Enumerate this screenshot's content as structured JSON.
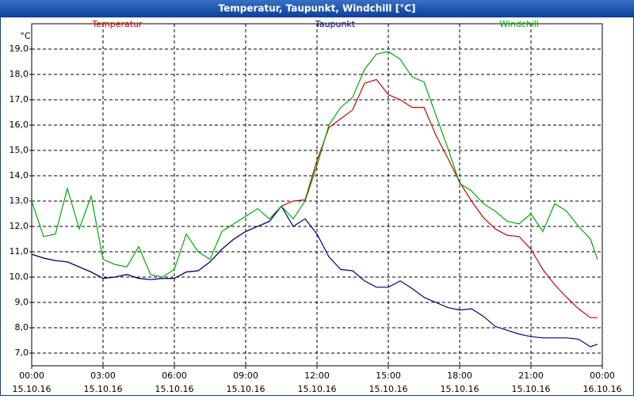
{
  "chart_data": {
    "type": "line",
    "title": "Temperatur, Taupunkt, Windchill [°C]",
    "y_unit": "°C",
    "x": [
      0,
      0.5,
      1,
      1.5,
      2,
      2.5,
      3,
      3.5,
      4,
      4.5,
      5,
      5.5,
      6,
      6.5,
      7,
      7.5,
      8,
      8.5,
      9,
      9.5,
      10,
      10.5,
      11,
      11.5,
      12,
      12.5,
      13,
      13.5,
      14,
      14.5,
      15,
      15.5,
      16,
      16.5,
      17,
      17.5,
      18,
      18.5,
      19,
      19.5,
      20,
      20.5,
      21,
      21.5,
      22,
      22.5,
      23,
      23.5,
      23.8
    ],
    "series": [
      {
        "name": "Temperatur",
        "color": "#cc0000",
        "values": [
          10.9,
          10.75,
          10.65,
          10.6,
          10.4,
          10.2,
          9.95,
          10.0,
          10.1,
          9.95,
          9.9,
          9.95,
          9.95,
          10.2,
          10.25,
          10.6,
          11.1,
          11.5,
          11.8,
          12.0,
          12.2,
          12.8,
          13.0,
          13.05,
          14.6,
          15.9,
          16.25,
          16.6,
          17.65,
          17.8,
          17.2,
          17.0,
          16.7,
          16.7,
          15.6,
          14.7,
          13.75,
          13.0,
          12.35,
          11.9,
          11.65,
          11.6,
          11.1,
          10.3,
          9.7,
          9.2,
          8.75,
          8.4,
          8.4
        ]
      },
      {
        "name": "Taupunkt",
        "color": "#00008b",
        "values": [
          10.9,
          10.75,
          10.65,
          10.6,
          10.4,
          10.2,
          9.95,
          10.0,
          10.1,
          9.95,
          9.9,
          9.95,
          9.95,
          10.2,
          10.25,
          10.6,
          11.1,
          11.5,
          11.8,
          12.0,
          12.2,
          12.8,
          12.0,
          12.3,
          11.7,
          10.8,
          10.3,
          10.25,
          9.85,
          9.6,
          9.6,
          9.85,
          9.55,
          9.2,
          9.0,
          8.8,
          8.7,
          8.75,
          8.45,
          8.05,
          7.9,
          7.75,
          7.65,
          7.6,
          7.6,
          7.6,
          7.55,
          7.25,
          7.35
        ]
      },
      {
        "name": "Windchill",
        "color": "#00aa00",
        "values": [
          13.0,
          11.6,
          11.7,
          13.5,
          11.9,
          13.2,
          10.7,
          10.5,
          10.4,
          11.2,
          10.1,
          10.0,
          10.3,
          11.7,
          11.0,
          10.7,
          11.8,
          12.1,
          12.4,
          12.7,
          12.3,
          12.8,
          12.3,
          13.0,
          14.4,
          16.0,
          16.7,
          17.1,
          18.2,
          18.8,
          18.9,
          18.6,
          17.9,
          17.7,
          16.4,
          15.1,
          13.7,
          13.4,
          12.9,
          12.6,
          12.2,
          12.1,
          12.5,
          11.8,
          12.9,
          12.6,
          12.0,
          11.5,
          10.7
        ]
      }
    ],
    "xlim": [
      0,
      24
    ],
    "xticks": [
      {
        "value": 0,
        "label": "00:00 15.10.16"
      },
      {
        "value": 3,
        "label": "03:00 15.10.16"
      },
      {
        "value": 6,
        "label": "06:00 15.10.16"
      },
      {
        "value": 9,
        "label": "09:00 15.10.16"
      },
      {
        "value": 12,
        "label": "12:00 15.10.16"
      },
      {
        "value": 15,
        "label": "15:00 15.10.16"
      },
      {
        "value": 18,
        "label": "18:00 15.10.16"
      },
      {
        "value": 21,
        "label": "21:00 15.10.16"
      },
      {
        "value": 24,
        "label": "00:00 16.10.16"
      }
    ],
    "ylim": [
      6.5,
      20.0
    ],
    "yticks": [
      {
        "value": 7,
        "label": "7,0"
      },
      {
        "value": 8,
        "label": "8,0"
      },
      {
        "value": 9,
        "label": "9,0"
      },
      {
        "value": 10,
        "label": "10,0"
      },
      {
        "value": 11,
        "label": "11,0"
      },
      {
        "value": 12,
        "label": "12,0"
      },
      {
        "value": 13,
        "label": "13,0"
      },
      {
        "value": 14,
        "label": "14,0"
      },
      {
        "value": 15,
        "label": "15,0"
      },
      {
        "value": 16,
        "label": "16,0"
      },
      {
        "value": 17,
        "label": "17,0"
      },
      {
        "value": 18,
        "label": "18,0"
      },
      {
        "value": 19,
        "label": "19,0"
      }
    ],
    "grid": true
  }
}
